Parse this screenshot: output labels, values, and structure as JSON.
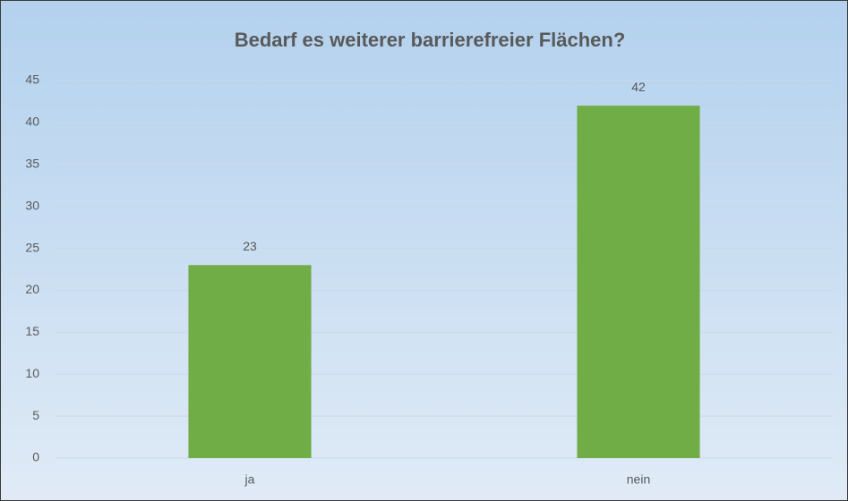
{
  "chart_data": {
    "type": "bar",
    "title": "Bedarf es weiterer barrierefreier Flächen?",
    "categories": [
      "ja",
      "nein"
    ],
    "values": [
      23,
      42
    ],
    "color": "#70ad47",
    "ylim": [
      0,
      45
    ],
    "yticks": [
      0,
      5,
      10,
      15,
      20,
      25,
      30,
      35,
      40,
      45
    ],
    "grid": true,
    "data_labels": true
  }
}
